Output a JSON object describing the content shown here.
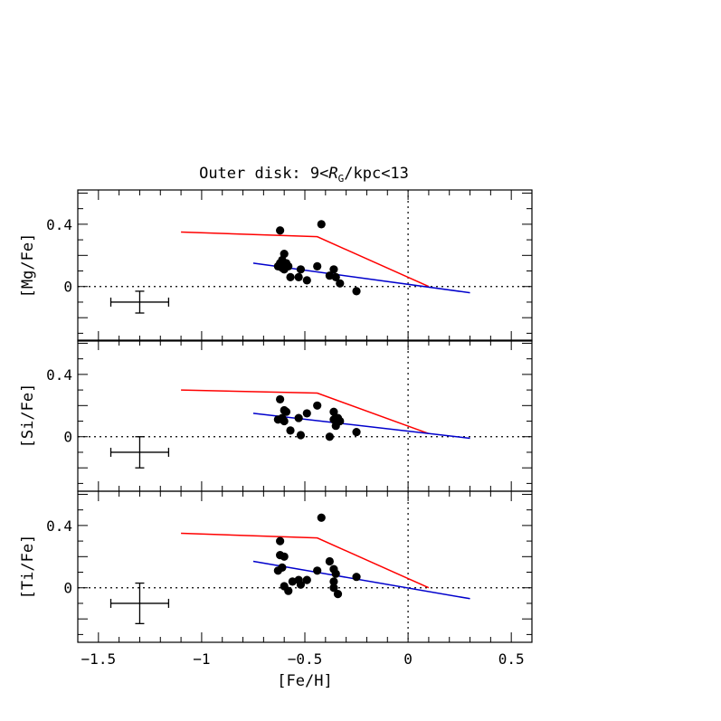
{
  "title_prefix": "Outer disk: 9<",
  "title_symbol": "R",
  "title_subscript": "G",
  "title_suffix": "/kpc<13",
  "xlabel": "[Fe/H]",
  "xlim": [
    -1.6,
    0.6
  ],
  "xticks": [
    {
      "value": -1.5,
      "label": "−1.5"
    },
    {
      "value": -1.0,
      "label": "−1"
    },
    {
      "value": -0.5,
      "label": "−0.5"
    },
    {
      "value": 0.0,
      "label": "0"
    },
    {
      "value": 0.5,
      "label": "0.5"
    }
  ],
  "colors": {
    "model_red": "#ff0000",
    "fit_blue": "#0000cc",
    "points": "#000000"
  },
  "chart_data": [
    {
      "type": "scatter",
      "ylabel": "[Mg/Fe]",
      "ylim": [
        -0.35,
        0.62
      ],
      "yticks": [
        {
          "value": 0,
          "label": "0"
        },
        {
          "value": 0.4,
          "label": "0.4"
        }
      ],
      "zero_line": true,
      "vertical_line_x": 0.0,
      "points": [
        [
          -0.62,
          0.36
        ],
        [
          -0.42,
          0.4
        ],
        [
          -0.63,
          0.13
        ],
        [
          -0.62,
          0.15
        ],
        [
          -0.61,
          0.17
        ],
        [
          -0.6,
          0.21
        ],
        [
          -0.6,
          0.11
        ],
        [
          -0.59,
          0.15
        ],
        [
          -0.58,
          0.13
        ],
        [
          -0.57,
          0.06
        ],
        [
          -0.53,
          0.06
        ],
        [
          -0.52,
          0.11
        ],
        [
          -0.49,
          0.04
        ],
        [
          -0.44,
          0.13
        ],
        [
          -0.38,
          0.07
        ],
        [
          -0.36,
          0.11
        ],
        [
          -0.35,
          0.06
        ],
        [
          -0.33,
          0.02
        ],
        [
          -0.25,
          -0.03
        ],
        [
          -0.61,
          0.12
        ]
      ],
      "error_bar": {
        "x": -1.3,
        "y": -0.1,
        "xerr": 0.14,
        "yerr": 0.07
      },
      "model_line": [
        [
          -1.1,
          0.35
        ],
        [
          -0.44,
          0.32
        ],
        [
          0.1,
          0.0
        ]
      ],
      "fit_line": [
        [
          -0.75,
          0.15
        ],
        [
          0.3,
          -0.04
        ]
      ]
    },
    {
      "type": "scatter",
      "ylabel": "[Si/Fe]",
      "ylim": [
        -0.35,
        0.62
      ],
      "yticks": [
        {
          "value": 0,
          "label": "0"
        },
        {
          "value": 0.4,
          "label": "0.4"
        }
      ],
      "zero_line": true,
      "vertical_line_x": 0.0,
      "points": [
        [
          -0.62,
          0.24
        ],
        [
          -0.63,
          0.11
        ],
        [
          -0.61,
          0.12
        ],
        [
          -0.6,
          0.17
        ],
        [
          -0.6,
          0.1
        ],
        [
          -0.59,
          0.16
        ],
        [
          -0.57,
          0.04
        ],
        [
          -0.53,
          0.12
        ],
        [
          -0.52,
          0.01
        ],
        [
          -0.49,
          0.15
        ],
        [
          -0.44,
          0.2
        ],
        [
          -0.38,
          0.0
        ],
        [
          -0.36,
          0.16
        ],
        [
          -0.36,
          0.11
        ],
        [
          -0.35,
          0.07
        ],
        [
          -0.34,
          0.12
        ],
        [
          -0.33,
          0.1
        ],
        [
          -0.25,
          0.03
        ]
      ],
      "error_bar": {
        "x": -1.3,
        "y": -0.1,
        "xerr": 0.14,
        "yerr": 0.1
      },
      "model_line": [
        [
          -1.1,
          0.3
        ],
        [
          -0.44,
          0.28
        ],
        [
          0.1,
          0.02
        ]
      ],
      "fit_line": [
        [
          -0.75,
          0.15
        ],
        [
          0.3,
          -0.01
        ]
      ]
    },
    {
      "type": "scatter",
      "ylabel": "[Ti/Fe]",
      "ylim": [
        -0.35,
        0.62
      ],
      "yticks": [
        {
          "value": 0,
          "label": "0"
        },
        {
          "value": 0.4,
          "label": "0.4"
        }
      ],
      "zero_line": true,
      "vertical_line_x": 0.0,
      "points": [
        [
          -0.42,
          0.45
        ],
        [
          -0.62,
          0.3
        ],
        [
          -0.62,
          0.21
        ],
        [
          -0.6,
          0.2
        ],
        [
          -0.63,
          0.11
        ],
        [
          -0.61,
          0.13
        ],
        [
          -0.6,
          0.01
        ],
        [
          -0.58,
          -0.02
        ],
        [
          -0.56,
          0.04
        ],
        [
          -0.53,
          0.05
        ],
        [
          -0.52,
          0.02
        ],
        [
          -0.49,
          0.05
        ],
        [
          -0.44,
          0.11
        ],
        [
          -0.38,
          0.17
        ],
        [
          -0.36,
          0.12
        ],
        [
          -0.35,
          0.09
        ],
        [
          -0.36,
          0.04
        ],
        [
          -0.36,
          0.0
        ],
        [
          -0.34,
          -0.04
        ],
        [
          -0.25,
          0.07
        ]
      ],
      "error_bar": {
        "x": -1.3,
        "y": -0.1,
        "xerr": 0.14,
        "yerr": 0.13
      },
      "model_line": [
        [
          -1.1,
          0.35
        ],
        [
          -0.44,
          0.32
        ],
        [
          0.1,
          0.0
        ]
      ],
      "fit_line": [
        [
          -0.75,
          0.17
        ],
        [
          0.3,
          -0.07
        ]
      ]
    }
  ]
}
